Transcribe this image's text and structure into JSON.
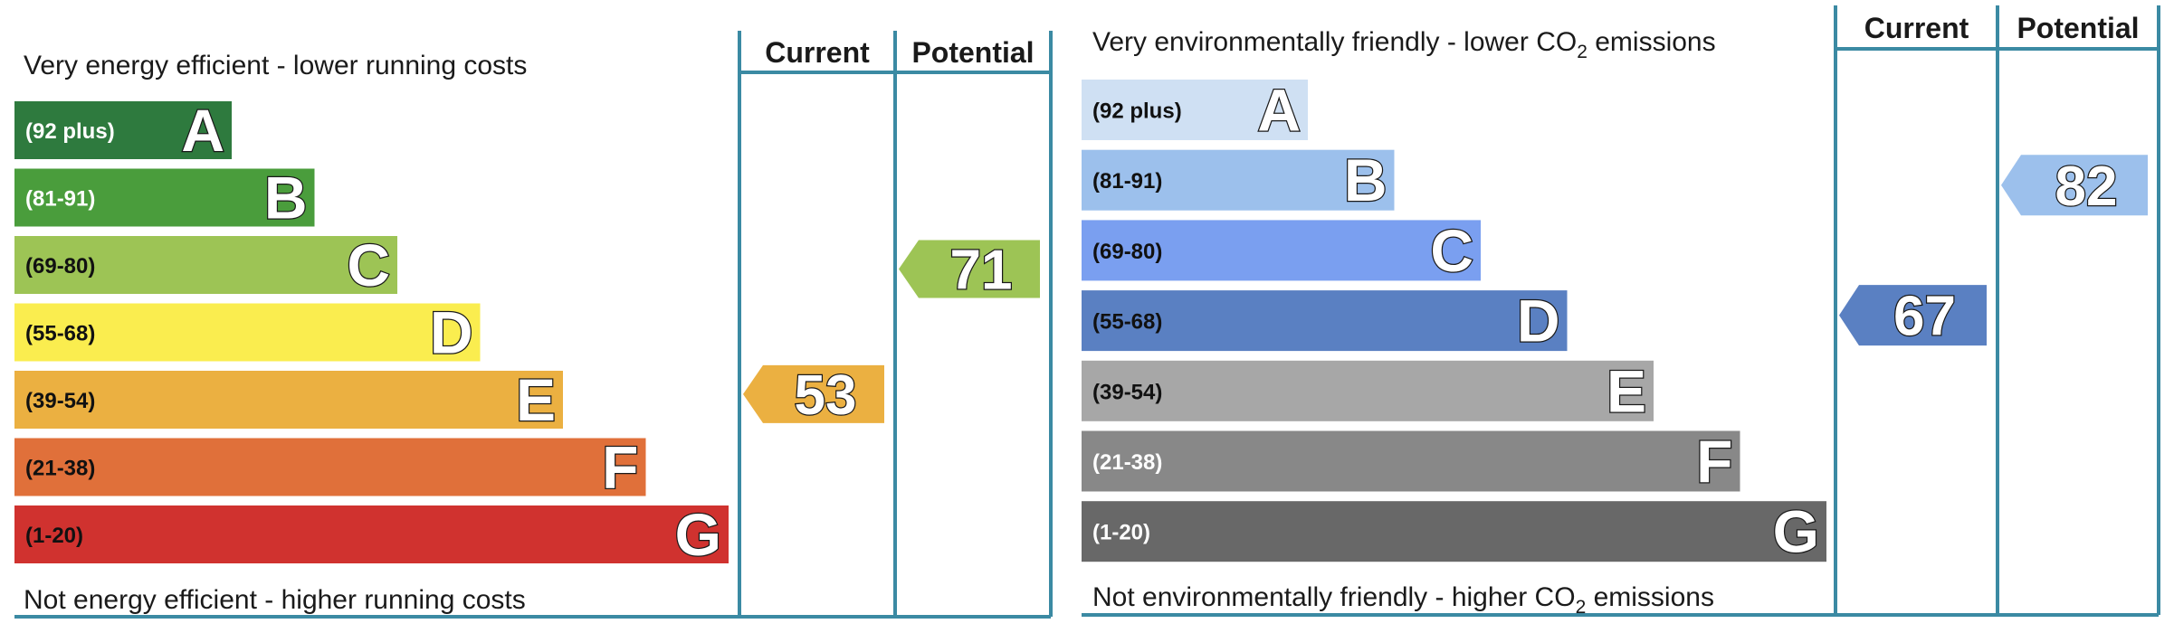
{
  "chart_data": [
    {
      "type": "bar",
      "id": "energy-efficiency",
      "top_caption": "Very energy efficient - lower running costs",
      "bottom_caption": "Not energy efficient - higher running costs",
      "columns": {
        "current": "Current",
        "potential": "Potential"
      },
      "bands": [
        {
          "letter": "A",
          "range": "(92 plus)",
          "min": 92,
          "max": 100,
          "color": "#2e7a3e",
          "text_color": "#ffffff"
        },
        {
          "letter": "B",
          "range": "(81-91)",
          "min": 81,
          "max": 91,
          "color": "#4a9d3c",
          "text_color": "#ffffff"
        },
        {
          "letter": "C",
          "range": "(69-80)",
          "min": 69,
          "max": 80,
          "color": "#9dc455",
          "text_color": "#111111"
        },
        {
          "letter": "D",
          "range": "(55-68)",
          "min": 55,
          "max": 68,
          "color": "#faed4f",
          "text_color": "#111111"
        },
        {
          "letter": "E",
          "range": "(39-54)",
          "min": 39,
          "max": 54,
          "color": "#ebb041",
          "text_color": "#111111"
        },
        {
          "letter": "F",
          "range": "(21-38)",
          "min": 21,
          "max": 38,
          "color": "#e0703a",
          "text_color": "#111111"
        },
        {
          "letter": "G",
          "range": "(1-20)",
          "min": 1,
          "max": 20,
          "color": "#d0322f",
          "text_color": "#111111"
        }
      ],
      "current": {
        "value": 53,
        "band": "E",
        "color": "#ebb041"
      },
      "potential": {
        "value": 71,
        "band": "C",
        "color": "#9dc455"
      }
    },
    {
      "type": "bar",
      "id": "environmental-impact",
      "top_caption": "Very environmentally friendly - lower CO",
      "top_caption_sub": "2",
      "top_caption_tail": " emissions",
      "bottom_caption": "Not environmentally friendly - higher CO",
      "bottom_caption_sub": "2",
      "bottom_caption_tail": " emissions",
      "columns": {
        "current": "Current",
        "potential": "Potential"
      },
      "bands": [
        {
          "letter": "A",
          "range": "(92 plus)",
          "min": 92,
          "max": 100,
          "color": "#cfe0f3",
          "text_color": "#111111"
        },
        {
          "letter": "B",
          "range": "(81-91)",
          "min": 81,
          "max": 91,
          "color": "#9cc0ec",
          "text_color": "#111111"
        },
        {
          "letter": "C",
          "range": "(69-80)",
          "min": 69,
          "max": 80,
          "color": "#7a9ff0",
          "text_color": "#111111"
        },
        {
          "letter": "D",
          "range": "(55-68)",
          "min": 55,
          "max": 68,
          "color": "#5a80c2",
          "text_color": "#111111"
        },
        {
          "letter": "E",
          "range": "(39-54)",
          "min": 39,
          "max": 54,
          "color": "#a7a7a7",
          "text_color": "#111111"
        },
        {
          "letter": "F",
          "range": "(21-38)",
          "min": 21,
          "max": 38,
          "color": "#888888",
          "text_color": "#ffffff"
        },
        {
          "letter": "G",
          "range": "(1-20)",
          "min": 1,
          "max": 20,
          "color": "#686868",
          "text_color": "#ffffff"
        }
      ],
      "current": {
        "value": 67,
        "band": "D",
        "color": "#5a80c2"
      },
      "potential": {
        "value": 82,
        "band": "B",
        "color": "#9cc0ec"
      }
    }
  ]
}
